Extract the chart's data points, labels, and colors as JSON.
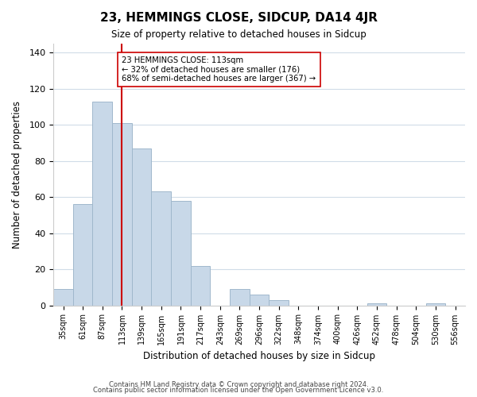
{
  "title": "23, HEMMINGS CLOSE, SIDCUP, DA14 4JR",
  "subtitle": "Size of property relative to detached houses in Sidcup",
  "xlabel": "Distribution of detached houses by size in Sidcup",
  "ylabel": "Number of detached properties",
  "bin_labels": [
    "35sqm",
    "61sqm",
    "87sqm",
    "113sqm",
    "139sqm",
    "165sqm",
    "191sqm",
    "217sqm",
    "243sqm",
    "269sqm",
    "296sqm",
    "322sqm",
    "348sqm",
    "374sqm",
    "400sqm",
    "426sqm",
    "452sqm",
    "478sqm",
    "504sqm",
    "530sqm",
    "556sqm"
  ],
  "bar_values": [
    9,
    56,
    113,
    101,
    87,
    63,
    58,
    22,
    0,
    9,
    6,
    3,
    0,
    0,
    0,
    0,
    1,
    0,
    0,
    1,
    0
  ],
  "bar_color": "#c8d8e8",
  "bar_edge_color": "#a0b8cc",
  "vline_x": 3,
  "vline_color": "#cc0000",
  "annotation_text": "23 HEMMINGS CLOSE: 113sqm\n← 32% of detached houses are smaller (176)\n68% of semi-detached houses are larger (367) →",
  "annotation_box_color": "#ffffff",
  "annotation_box_edge": "#cc0000",
  "ylim": [
    0,
    145
  ],
  "yticks": [
    0,
    20,
    40,
    60,
    80,
    100,
    120,
    140
  ],
  "footer1": "Contains HM Land Registry data © Crown copyright and database right 2024.",
  "footer2": "Contains public sector information licensed under the Open Government Licence v3.0.",
  "background_color": "#ffffff",
  "grid_color": "#d0dce8"
}
